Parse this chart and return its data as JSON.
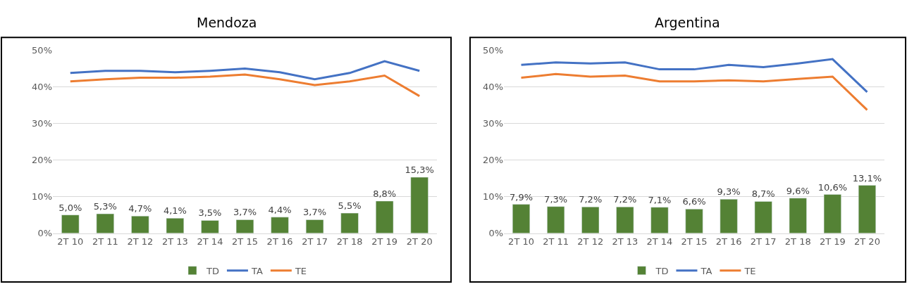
{
  "chart_data": [
    {
      "type": "bar",
      "title": "Mendoza",
      "categories": [
        "2T 10",
        "2T 11",
        "2T 12",
        "2T 13",
        "2T 14",
        "2T 15",
        "2T 16",
        "2T 17",
        "2T 18",
        "2T 19",
        "2T 20"
      ],
      "series": [
        {
          "name": "TD",
          "color": "#548235",
          "values": [
            5.0,
            5.3,
            4.7,
            4.1,
            3.5,
            3.7,
            4.4,
            3.7,
            5.5,
            8.8,
            15.3
          ],
          "value_labels": [
            "5,0%",
            "5,3%",
            "4,7%",
            "4,1%",
            "3,5%",
            "3,7%",
            "4,4%",
            "3,7%",
            "5,5%",
            "8,8%",
            "15,3%"
          ]
        },
        {
          "name": "TA",
          "type": "line",
          "color": "#4472c4",
          "values": [
            43.8,
            44.4,
            44.4,
            44.0,
            44.4,
            45.0,
            44.0,
            42.1,
            43.8,
            47.0,
            44.4
          ]
        },
        {
          "name": "TE",
          "type": "line",
          "color": "#ed7d31",
          "values": [
            41.5,
            42.1,
            42.5,
            42.5,
            42.8,
            43.4,
            42.1,
            40.5,
            41.5,
            43.1,
            37.5
          ]
        }
      ],
      "ylim": [
        0,
        50
      ],
      "yticks": [
        {
          "value": 0,
          "label": "0%"
        },
        {
          "value": 10,
          "label": "10%"
        },
        {
          "value": 20,
          "label": "20%"
        },
        {
          "value": 30,
          "label": "30%"
        },
        {
          "value": 40,
          "label": "40%"
        },
        {
          "value": 50,
          "label": "50%"
        }
      ],
      "grid": "y",
      "legend": "bottom"
    },
    {
      "type": "bar",
      "title": "Argentina",
      "categories": [
        "2T 10",
        "2T 11",
        "2T 12",
        "2T 13",
        "2T 14",
        "2T 15",
        "2T 16",
        "2T 17",
        "2T 18",
        "2T 19",
        "2T 20"
      ],
      "series": [
        {
          "name": "TD",
          "color": "#548235",
          "values": [
            7.9,
            7.3,
            7.2,
            7.2,
            7.1,
            6.6,
            9.3,
            8.7,
            9.6,
            10.6,
            13.1
          ],
          "value_labels": [
            "7,9%",
            "7,3%",
            "7,2%",
            "7,2%",
            "7,1%",
            "6,6%",
            "9,3%",
            "8,7%",
            "9,6%",
            "10,6%",
            "13,1%"
          ]
        },
        {
          "name": "TA",
          "type": "line",
          "color": "#4472c4",
          "values": [
            46.0,
            46.7,
            46.4,
            46.7,
            44.8,
            44.8,
            46.0,
            45.4,
            46.4,
            47.6,
            38.6
          ]
        },
        {
          "name": "TE",
          "type": "line",
          "color": "#ed7d31",
          "values": [
            42.5,
            43.5,
            42.8,
            43.1,
            41.5,
            41.5,
            41.8,
            41.5,
            42.2,
            42.8,
            33.7
          ]
        }
      ],
      "ylim": [
        0,
        50
      ],
      "yticks": [
        {
          "value": 0,
          "label": "0%"
        },
        {
          "value": 10,
          "label": "10%"
        },
        {
          "value": 20,
          "label": "20%"
        },
        {
          "value": 30,
          "label": "30%"
        },
        {
          "value": 40,
          "label": "40%"
        },
        {
          "value": 50,
          "label": "50%"
        }
      ],
      "grid": "y",
      "legend": "bottom"
    }
  ]
}
